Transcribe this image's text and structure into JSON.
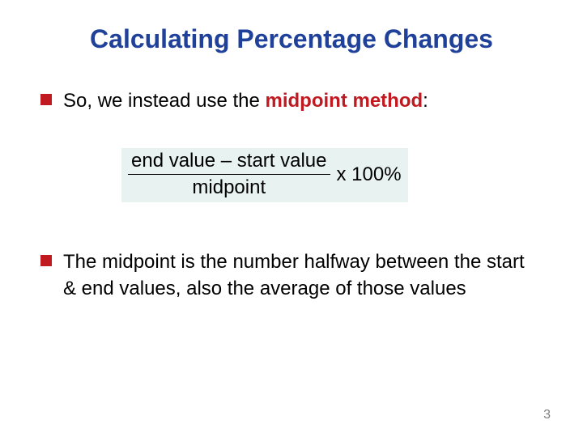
{
  "colors": {
    "title": "#20419a",
    "bullet": "#c01920",
    "highlight": "#c01920",
    "text": "#000000",
    "formula_bg": "#e8f2f0",
    "page_num": "#808080",
    "background": "#ffffff"
  },
  "typography": {
    "title_fontsize": 32,
    "body_fontsize": 24,
    "formula_fontsize": 24,
    "page_num_fontsize": 16,
    "title_weight": "bold"
  },
  "title": "Calculating Percentage Changes",
  "bullets": [
    {
      "pre": "So, we instead use the ",
      "highlight": "midpoint method",
      "post": ":"
    },
    {
      "pre": "The midpoint is the number halfway between the start & end values, also the average of those values",
      "highlight": "",
      "post": ""
    }
  ],
  "formula": {
    "numerator": "end value – start value",
    "denominator": "midpoint",
    "suffix": "x  100%"
  },
  "page_number": "3"
}
